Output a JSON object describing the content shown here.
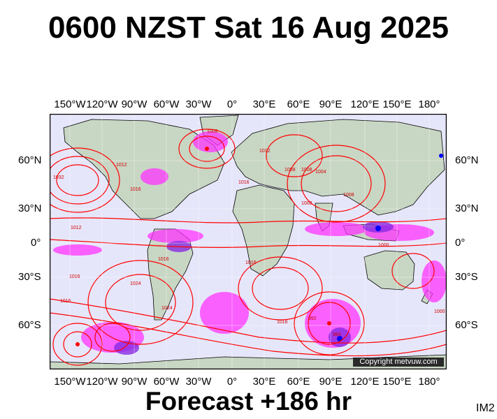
{
  "title": "0600 NZST Sat 16 Aug 2025",
  "footer": "Forecast +186 hr",
  "product_code": "IM2",
  "copyright": "Copyright metvuw.com",
  "lon_ticks": [
    "150°W",
    "120°W",
    "90°W",
    "60°W",
    "30°W",
    "0°",
    "30°E",
    "60°E",
    "90°E",
    "120°E",
    "150°E",
    "180°"
  ],
  "lat_ticks": [
    "60°N",
    "30°N",
    "0°",
    "30°S",
    "60°S"
  ],
  "isobar_labels": [
    "1008",
    "1008",
    "1012",
    "1016",
    "1016",
    "1008",
    "1004",
    "1008",
    "1008",
    "1012",
    "1012",
    "1016",
    "1016",
    "1016",
    "1024",
    "1024",
    "1032",
    "1000",
    "992",
    "984",
    "1016",
    "1016",
    "1000"
  ],
  "colors": {
    "ocean": "#e6e6fa",
    "land": "#c8d6c4",
    "isobar": "#ff0000",
    "rain_light": "#ff33ff",
    "rain_medium": "#8a2be2",
    "rain_heavy": "#0000ff",
    "grid": "#ffffff",
    "coast": "#000000"
  }
}
